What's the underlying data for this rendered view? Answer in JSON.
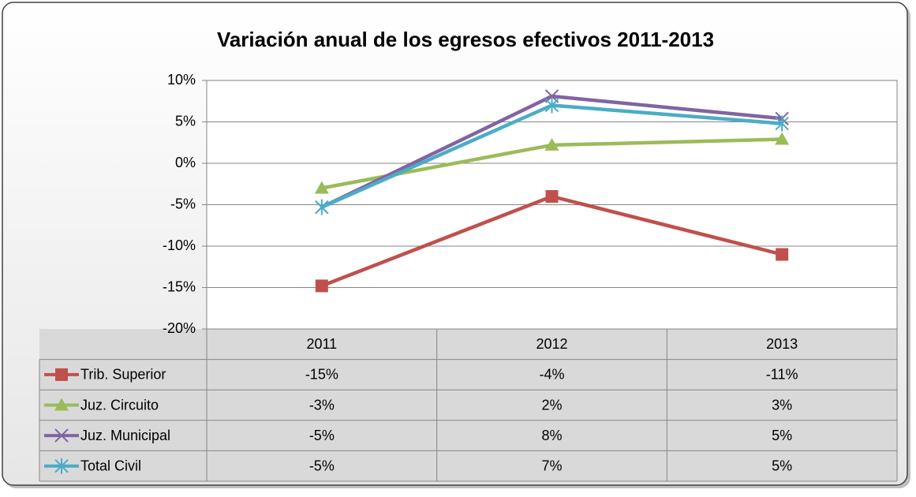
{
  "chart_data": {
    "type": "line",
    "title": "Variación anual de los egresos efectivos 2011-2013",
    "categories": [
      "2011",
      "2012",
      "2013"
    ],
    "series": [
      {
        "name": "Trib. Superior",
        "color": "#c0504d",
        "marker": "square",
        "values": [
          -14.8,
          -4,
          -11
        ],
        "value_labels": [
          "-15%",
          "-4%",
          "-11%"
        ]
      },
      {
        "name": "Juz. Circuito",
        "color": "#9bbb59",
        "marker": "triangle",
        "values": [
          -3,
          2.2,
          2.9
        ],
        "value_labels": [
          "-3%",
          "2%",
          "3%"
        ]
      },
      {
        "name": "Juz. Municipal",
        "color": "#8064a2",
        "marker": "x",
        "values": [
          -5.3,
          8.1,
          5.4
        ],
        "value_labels": [
          "-5%",
          "8%",
          "5%"
        ]
      },
      {
        "name": "Total Civil",
        "color": "#4bacc6",
        "marker": "star",
        "values": [
          -5.3,
          7,
          4.8
        ],
        "value_labels": [
          "-5%",
          "7%",
          "5%"
        ]
      }
    ],
    "ylim": [
      -20,
      10
    ],
    "yticks": [
      {
        "value": -20,
        "label": "-20%"
      },
      {
        "value": -15,
        "label": "-15%"
      },
      {
        "value": -10,
        "label": "-10%"
      },
      {
        "value": -5,
        "label": "-5%"
      },
      {
        "value": 0,
        "label": "0%"
      },
      {
        "value": 5,
        "label": "5%"
      },
      {
        "value": 10,
        "label": "10%"
      }
    ],
    "grid": true
  }
}
